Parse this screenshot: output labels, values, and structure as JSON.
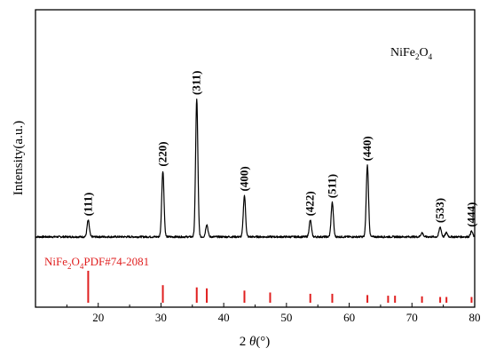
{
  "chart_data": {
    "type": "line",
    "sample_label": {
      "base": "NiFe",
      "sub1": "2",
      "mid": "O",
      "sub2": "4"
    },
    "ylabel": "Intensity(a.u.)",
    "xlabel": {
      "prefix": "2 ",
      "theta": "θ",
      "suffix": "(°)"
    },
    "xlim": [
      10,
      80
    ],
    "xticks": [
      20,
      30,
      40,
      50,
      60,
      70,
      80
    ],
    "line_color": "#000000",
    "reference": {
      "label": {
        "base": "NiFe",
        "sub1": "2",
        "mid": "O",
        "sub2": "4",
        "rest": "PDF#74-2081"
      },
      "color": "#e01f1f",
      "lines": [
        {
          "x": 18.4,
          "h": 1.0
        },
        {
          "x": 30.3,
          "h": 0.55
        },
        {
          "x": 35.7,
          "h": 0.48
        },
        {
          "x": 37.3,
          "h": 0.45
        },
        {
          "x": 43.3,
          "h": 0.38
        },
        {
          "x": 47.4,
          "h": 0.32
        },
        {
          "x": 53.8,
          "h": 0.28
        },
        {
          "x": 57.3,
          "h": 0.28
        },
        {
          "x": 62.9,
          "h": 0.24
        },
        {
          "x": 66.2,
          "h": 0.22
        },
        {
          "x": 67.3,
          "h": 0.22
        },
        {
          "x": 71.6,
          "h": 0.2
        },
        {
          "x": 74.5,
          "h": 0.18
        },
        {
          "x": 75.5,
          "h": 0.18
        },
        {
          "x": 79.5,
          "h": 0.18
        }
      ]
    },
    "peaks": [
      {
        "x": 18.4,
        "height": 12,
        "label": "(111)"
      },
      {
        "x": 30.3,
        "height": 48,
        "label": "(220)"
      },
      {
        "x": 35.7,
        "height": 100,
        "label": "(311)"
      },
      {
        "x": 37.3,
        "height": 9,
        "label": ""
      },
      {
        "x": 43.3,
        "height": 30,
        "label": "(400)"
      },
      {
        "x": 53.8,
        "height": 12,
        "label": "(422)"
      },
      {
        "x": 57.3,
        "height": 25,
        "label": "(511)"
      },
      {
        "x": 62.9,
        "height": 52,
        "label": "(440)"
      },
      {
        "x": 71.6,
        "height": 3,
        "label": ""
      },
      {
        "x": 74.5,
        "height": 7,
        "label": "(533)"
      },
      {
        "x": 75.5,
        "height": 3,
        "label": ""
      },
      {
        "x": 79.5,
        "height": 4,
        "label": "(444)"
      }
    ]
  }
}
